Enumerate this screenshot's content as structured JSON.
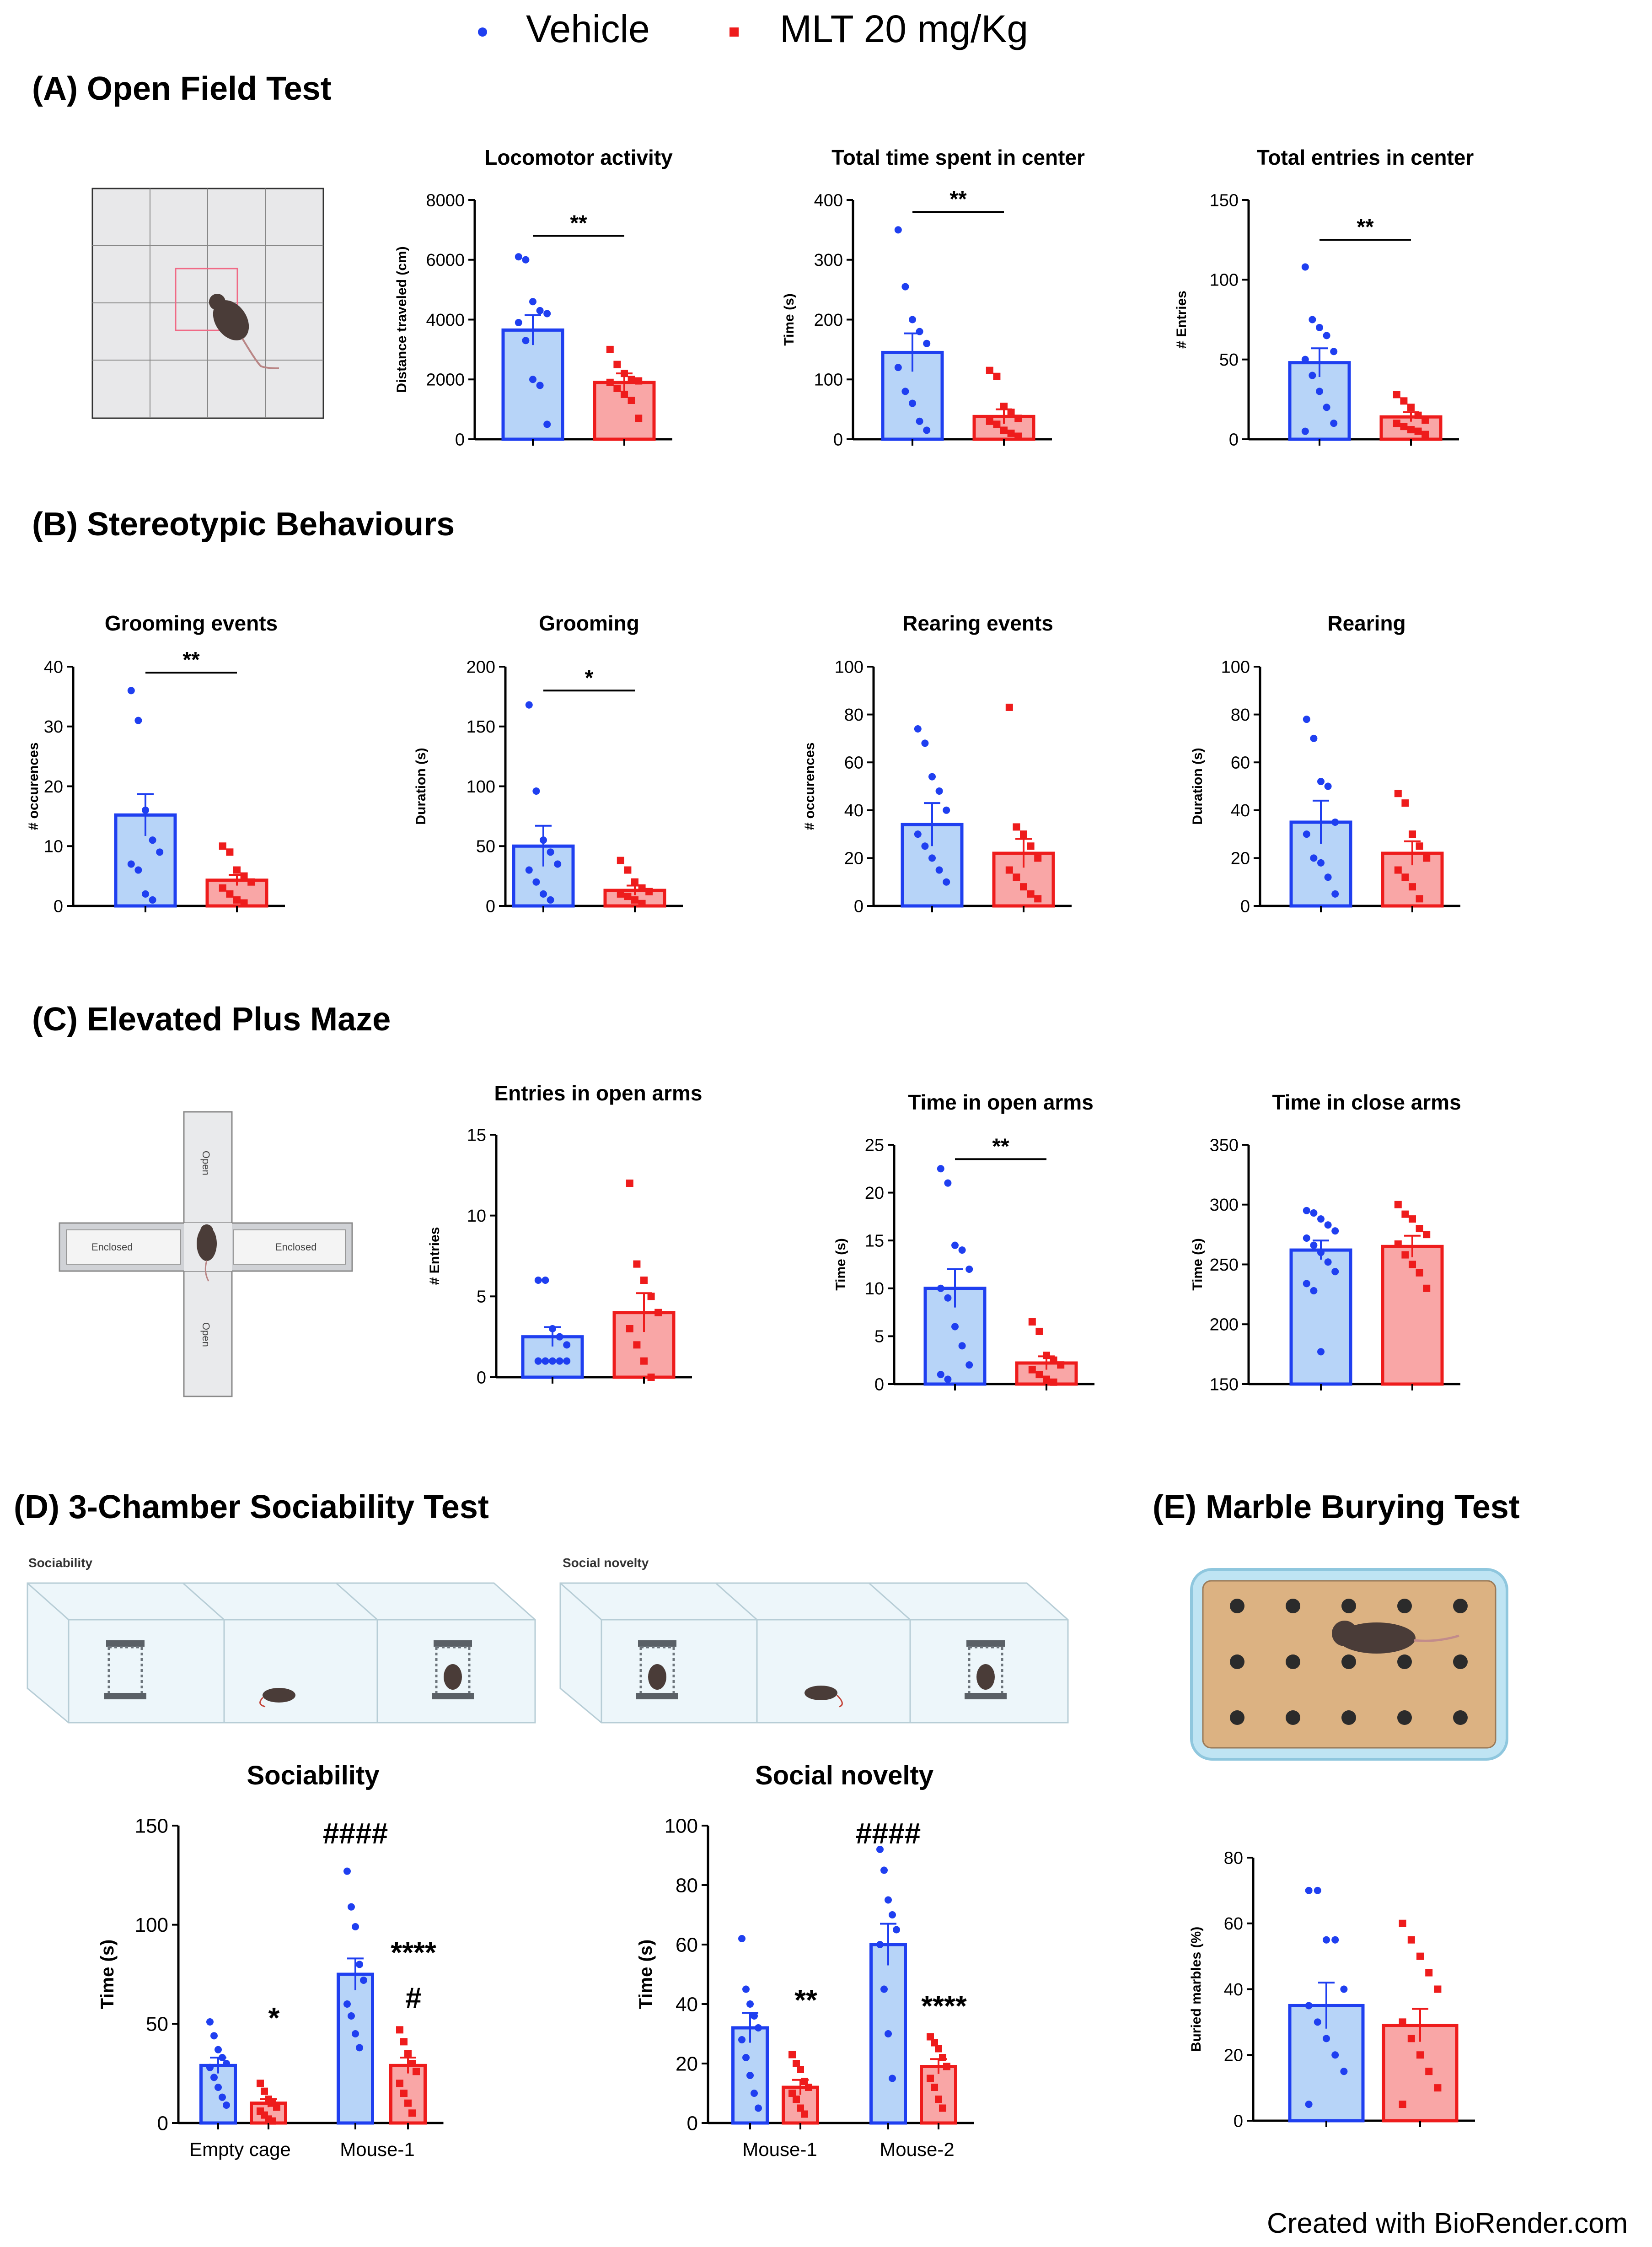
{
  "legend": {
    "items": [
      {
        "label": "Vehicle",
        "color": "#1f3ff0"
      },
      {
        "label": "MLT 20 mg/Kg",
        "color": "#ee1c1c"
      }
    ]
  },
  "colors": {
    "vehicle_stroke": "#1f3ff0",
    "vehicle_fill": "#b7d4f8",
    "mlt_stroke": "#ee1c1c",
    "mlt_fill": "#f9a6a6"
  },
  "sections": [
    {
      "id": "A",
      "title": "(A) Open Field Test"
    },
    {
      "id": "B",
      "title": "(B) Stereotypic Behaviours"
    },
    {
      "id": "C",
      "title": "(C) Elevated Plus Maze"
    },
    {
      "id": "D",
      "title": "(D) 3-Chamber Sociability Test"
    },
    {
      "id": "E",
      "title": "(E) Marble Burying Test"
    }
  ],
  "illustrations": {
    "maze_enclosed": "Enclosed",
    "maze_open": "Open",
    "chamber_sociability": "Sociability",
    "chamber_social_novelty": "Social novelty"
  },
  "credit": "Created with BioRender.com",
  "chart_data": [
    {
      "id": "locomotor",
      "type": "bar",
      "title": "Locomotor activity",
      "ylabel": "Distance traveled (cm)",
      "ylim": [
        0,
        8000
      ],
      "yticks": [
        "0",
        "2000",
        "4000",
        "6000",
        "8000"
      ],
      "xlabels": [],
      "series": [
        {
          "name": "Vehicle",
          "values": [
            3650
          ],
          "sem": [
            500
          ]
        },
        {
          "name": "MLT 20 mg/Kg",
          "values": [
            1900
          ],
          "sem": [
            300
          ]
        }
      ],
      "points": [
        [
          6100,
          6000,
          4600,
          4300,
          4200,
          3900,
          3300,
          2000,
          1800,
          500
        ],
        [
          3000,
          2500,
          2200,
          2000,
          1950,
          1900,
          1700,
          1500,
          1300,
          700
        ]
      ],
      "brackets": [
        {
          "label": "**",
          "y": 6800
        }
      ]
    },
    {
      "id": "center_time",
      "type": "bar",
      "title": "Total time spent in center",
      "ylabel": "Time (s)",
      "ylim": [
        0,
        400
      ],
      "yticks": [
        "0",
        "100",
        "200",
        "300",
        "400"
      ],
      "xlabels": [],
      "series": [
        {
          "name": "Vehicle",
          "values": [
            145
          ],
          "sem": [
            32
          ]
        },
        {
          "name": "MLT 20 mg/Kg",
          "values": [
            38
          ],
          "sem": [
            12
          ]
        }
      ],
      "points": [
        [
          350,
          255,
          200,
          180,
          160,
          120,
          80,
          60,
          30,
          15
        ],
        [
          115,
          105,
          55,
          45,
          35,
          30,
          25,
          15,
          10,
          5
        ]
      ],
      "brackets": [
        {
          "label": "**",
          "y": 380
        }
      ]
    },
    {
      "id": "center_entries",
      "type": "bar",
      "title": "Total entries in center",
      "ylabel": "# Entries",
      "ylim": [
        0,
        150
      ],
      "yticks": [
        "0",
        "50",
        "100",
        "150"
      ],
      "xlabels": [],
      "series": [
        {
          "name": "Vehicle",
          "values": [
            48
          ],
          "sem": [
            9
          ]
        },
        {
          "name": "MLT 20 mg/Kg",
          "values": [
            14
          ],
          "sem": [
            3
          ]
        }
      ],
      "points": [
        [
          108,
          75,
          70,
          65,
          55,
          50,
          40,
          30,
          20,
          10,
          5
        ],
        [
          28,
          24,
          20,
          15,
          12,
          10,
          8,
          6,
          5,
          3
        ]
      ],
      "brackets": [
        {
          "label": "**",
          "y": 125
        }
      ]
    },
    {
      "id": "grooming_events",
      "type": "bar",
      "title": "Grooming events",
      "ylabel": "# occurences",
      "ylim": [
        0,
        40
      ],
      "yticks": [
        "0",
        "10",
        "20",
        "30",
        "40"
      ],
      "xlabels": [],
      "series": [
        {
          "name": "Vehicle",
          "values": [
            15.2
          ],
          "sem": [
            3.5
          ]
        },
        {
          "name": "MLT 20 mg/Kg",
          "values": [
            4.3
          ],
          "sem": [
            0.9
          ]
        }
      ],
      "points": [
        [
          36,
          31,
          16,
          11,
          9,
          7,
          6,
          2,
          1
        ],
        [
          10,
          9,
          6,
          5,
          4,
          3,
          2,
          1,
          0.5
        ]
      ],
      "brackets": [
        {
          "label": "**",
          "y": 39
        }
      ]
    },
    {
      "id": "grooming",
      "type": "bar",
      "title": "Grooming",
      "ylabel": "Duration (s)",
      "ylim": [
        0,
        200
      ],
      "yticks": [
        "0",
        "50",
        "100",
        "150",
        "200"
      ],
      "xlabels": [],
      "series": [
        {
          "name": "Vehicle",
          "values": [
            50
          ],
          "sem": [
            17
          ]
        },
        {
          "name": "MLT 20 mg/Kg",
          "values": [
            13
          ],
          "sem": [
            4
          ]
        }
      ],
      "points": [
        [
          168,
          96,
          55,
          45,
          35,
          30,
          20,
          10,
          5
        ],
        [
          38,
          30,
          20,
          15,
          12,
          10,
          8,
          5,
          2
        ]
      ],
      "brackets": [
        {
          "label": "*",
          "y": 180
        }
      ]
    },
    {
      "id": "rearing_events",
      "type": "bar",
      "title": "Rearing events",
      "ylabel": "# occurences",
      "ylim": [
        0,
        100
      ],
      "yticks": [
        "0",
        "20",
        "40",
        "60",
        "80",
        "100"
      ],
      "xlabels": [],
      "series": [
        {
          "name": "Vehicle",
          "values": [
            34
          ],
          "sem": [
            9
          ]
        },
        {
          "name": "MLT 20 mg/Kg",
          "values": [
            22
          ],
          "sem": [
            6
          ]
        }
      ],
      "points": [
        [
          74,
          68,
          54,
          48,
          40,
          30,
          25,
          20,
          15,
          10
        ],
        [
          83,
          33,
          30,
          25,
          20,
          15,
          12,
          8,
          5,
          3
        ]
      ],
      "brackets": []
    },
    {
      "id": "rearing",
      "type": "bar",
      "title": "Rearing",
      "ylabel": "Duration (s)",
      "ylim": [
        0,
        100
      ],
      "yticks": [
        "0",
        "20",
        "40",
        "60",
        "80",
        "100"
      ],
      "xlabels": [],
      "series": [
        {
          "name": "Vehicle",
          "values": [
            35
          ],
          "sem": [
            9
          ]
        },
        {
          "name": "MLT 20 mg/Kg",
          "values": [
            22
          ],
          "sem": [
            5
          ]
        }
      ],
      "points": [
        [
          78,
          70,
          52,
          50,
          35,
          30,
          20,
          18,
          12,
          5
        ],
        [
          47,
          43,
          30,
          25,
          20,
          15,
          12,
          8,
          3
        ]
      ],
      "brackets": []
    },
    {
      "id": "open_entries",
      "type": "bar",
      "title": "Entries in open arms",
      "ylabel": "# Entries",
      "ylim": [
        0,
        15
      ],
      "yticks": [
        "0",
        "5",
        "10",
        "15"
      ],
      "xlabels": [],
      "series": [
        {
          "name": "Vehicle",
          "values": [
            2.5
          ],
          "sem": [
            0.6
          ]
        },
        {
          "name": "MLT 20 mg/Kg",
          "values": [
            4.0
          ],
          "sem": [
            1.2
          ]
        }
      ],
      "points": [
        [
          6,
          6,
          3,
          2.5,
          2,
          1,
          1,
          1,
          1,
          1,
          1,
          1
        ],
        [
          12,
          7,
          6,
          5,
          4,
          3,
          2,
          1,
          0
        ]
      ],
      "brackets": []
    },
    {
      "id": "open_time",
      "type": "bar",
      "title": "Time in open arms",
      "ylabel": "Time (s)",
      "ylim": [
        0,
        25
      ],
      "yticks": [
        "0",
        "5",
        "10",
        "15",
        "20",
        "25"
      ],
      "xlabels": [],
      "series": [
        {
          "name": "Vehicle",
          "values": [
            10
          ],
          "sem": [
            2
          ]
        },
        {
          "name": "MLT 20 mg/Kg",
          "values": [
            2.2
          ],
          "sem": [
            0.7
          ]
        }
      ],
      "points": [
        [
          22.5,
          21,
          14.5,
          14,
          12,
          10,
          9,
          6,
          4,
          2,
          1,
          0.5
        ],
        [
          6.5,
          5.5,
          3,
          2.5,
          2,
          1.5,
          1,
          0.5,
          0.2
        ]
      ],
      "brackets": [
        {
          "label": "**",
          "y": 23.5
        }
      ]
    },
    {
      "id": "close_time",
      "type": "bar",
      "title": "Time in close arms",
      "ylabel": "Time (s)",
      "ylim": [
        150,
        350
      ],
      "yticks": [
        "150",
        "200",
        "250",
        "300",
        "350"
      ],
      "xlabels": [],
      "series": [
        {
          "name": "Vehicle",
          "values": [
            262
          ],
          "sem": [
            8
          ]
        },
        {
          "name": "MLT 20 mg/Kg",
          "values": [
            265
          ],
          "sem": [
            9
          ]
        }
      ],
      "points": [
        [
          295,
          293,
          288,
          283,
          278,
          272,
          266,
          260,
          252,
          244,
          234,
          228,
          177
        ],
        [
          300,
          292,
          288,
          280,
          275,
          267,
          258,
          250,
          243,
          230
        ]
      ],
      "brackets": []
    },
    {
      "id": "sociability",
      "type": "grouped-bar",
      "title": "Sociability",
      "ylabel": "Time (s)",
      "ylim": [
        0,
        150
      ],
      "yticks": [
        "0",
        "50",
        "100",
        "150"
      ],
      "categories": [
        "Empty cage",
        "Mouse-1"
      ],
      "series": [
        {
          "name": "Vehicle",
          "values": [
            29,
            75
          ],
          "sem": [
            4,
            8
          ]
        },
        {
          "name": "MLT 20 mg/Kg",
          "values": [
            10,
            29
          ],
          "sem": [
            2,
            4
          ]
        }
      ],
      "points": [
        [
          [
            51,
            44,
            37,
            33,
            30,
            28,
            23,
            18,
            13,
            9
          ],
          [
            127,
            109,
            99,
            80,
            72,
            60,
            54,
            45,
            38
          ]
        ],
        [
          [
            20,
            16,
            12,
            10,
            8,
            6,
            4,
            2,
            1
          ],
          [
            47,
            41,
            35,
            30,
            26,
            20,
            15,
            10,
            5
          ]
        ]
      ],
      "annotations": [
        {
          "label": "*",
          "group": 0,
          "series": 1,
          "y": 48
        },
        {
          "label": "####",
          "group": 1,
          "series": 0,
          "y": 141
        },
        {
          "label": "****",
          "group": 1,
          "series": 1,
          "y": 81
        },
        {
          "label": "#",
          "group": 1,
          "series": 1,
          "y": 58
        }
      ]
    },
    {
      "id": "social_novelty",
      "type": "grouped-bar",
      "title": "Social novelty",
      "ylabel": "Time (s)",
      "ylim": [
        0,
        100
      ],
      "yticks": [
        "0",
        "20",
        "40",
        "60",
        "80",
        "100"
      ],
      "categories": [
        "Mouse-1",
        "Mouse-2"
      ],
      "series": [
        {
          "name": "Vehicle",
          "values": [
            32,
            60
          ],
          "sem": [
            5,
            7
          ]
        },
        {
          "name": "MLT 20 mg/Kg",
          "values": [
            12,
            19
          ],
          "sem": [
            2.5,
            2.5
          ]
        }
      ],
      "points": [
        [
          [
            62,
            45,
            40,
            36,
            32,
            28,
            22,
            16,
            10,
            5
          ],
          [
            92,
            85,
            75,
            70,
            65,
            60,
            45,
            30,
            15
          ]
        ],
        [
          [
            23,
            20,
            18,
            14,
            12,
            10,
            8,
            5,
            3
          ],
          [
            29,
            27,
            25,
            22,
            19,
            15,
            12,
            8,
            5
          ]
        ]
      ],
      "annotations": [
        {
          "label": "**",
          "group": 0,
          "series": 1,
          "y": 38
        },
        {
          "label": "####",
          "group": 1,
          "series": 0,
          "y": 94
        },
        {
          "label": "****",
          "group": 1,
          "series": 1,
          "y": 36
        }
      ]
    },
    {
      "id": "marble",
      "type": "bar",
      "title": "",
      "ylabel": "Buried marbles (%)",
      "ylim": [
        0,
        80
      ],
      "yticks": [
        "0",
        "20",
        "40",
        "60",
        "80"
      ],
      "xlabels": [],
      "series": [
        {
          "name": "Vehicle",
          "values": [
            35
          ],
          "sem": [
            7
          ]
        },
        {
          "name": "MLT 20 mg/Kg",
          "values": [
            29
          ],
          "sem": [
            5
          ]
        }
      ],
      "points": [
        [
          70,
          70,
          55,
          55,
          40,
          35,
          30,
          25,
          20,
          15,
          5
        ],
        [
          60,
          55,
          50,
          45,
          40,
          30,
          25,
          20,
          15,
          10,
          5
        ]
      ],
      "brackets": []
    }
  ]
}
